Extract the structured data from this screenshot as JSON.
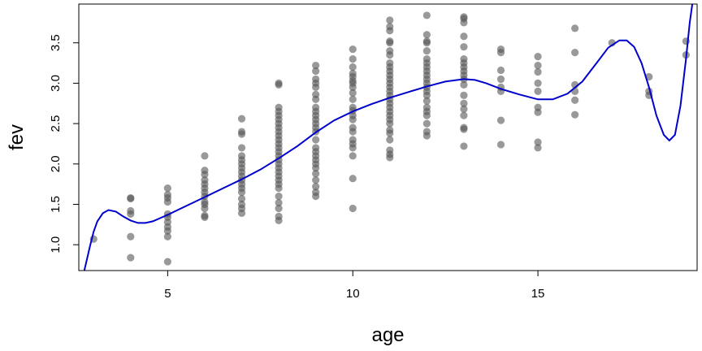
{
  "chart_data": {
    "type": "scatter",
    "title": "",
    "xlabel": "age",
    "ylabel": "fev",
    "xlim": [
      2.6,
      19.3
    ],
    "ylim": [
      0.68,
      3.98
    ],
    "xticks": [
      5,
      10,
      15
    ],
    "yticks": [
      1.0,
      1.5,
      2.0,
      2.5,
      3.0,
      3.5
    ],
    "xtick_labels": [
      "5",
      "10",
      "15"
    ],
    "ytick_labels": [
      "1.0",
      "1.5",
      "2.0",
      "2.5",
      "3.0",
      "3.5"
    ],
    "grid": false,
    "legend": "none",
    "point_color": "#555555",
    "line_color": "#0000cc",
    "series": [
      {
        "kind": "points",
        "points": [
          [
            3,
            1.07
          ],
          [
            4,
            0.84
          ],
          [
            4,
            1.1
          ],
          [
            4,
            1.38
          ],
          [
            4,
            1.42
          ],
          [
            4,
            1.57
          ],
          [
            4,
            1.58
          ],
          [
            5,
            0.79
          ],
          [
            5,
            1.1
          ],
          [
            5,
            1.17
          ],
          [
            5,
            1.22
          ],
          [
            5,
            1.28
          ],
          [
            5,
            1.34
          ],
          [
            5,
            1.38
          ],
          [
            5,
            1.53
          ],
          [
            5,
            1.58
          ],
          [
            5,
            1.62
          ],
          [
            5,
            1.7
          ],
          [
            6,
            1.34
          ],
          [
            6,
            1.36
          ],
          [
            6,
            1.45
          ],
          [
            6,
            1.5
          ],
          [
            6,
            1.53
          ],
          [
            6,
            1.6
          ],
          [
            6,
            1.65
          ],
          [
            6,
            1.7
          ],
          [
            6,
            1.75
          ],
          [
            6,
            1.8
          ],
          [
            6,
            1.87
          ],
          [
            6,
            1.92
          ],
          [
            6,
            2.1
          ],
          [
            7,
            1.39
          ],
          [
            7,
            1.45
          ],
          [
            7,
            1.5
          ],
          [
            7,
            1.57
          ],
          [
            7,
            1.65
          ],
          [
            7,
            1.7
          ],
          [
            7,
            1.75
          ],
          [
            7,
            1.8
          ],
          [
            7,
            1.85
          ],
          [
            7,
            1.9
          ],
          [
            7,
            1.95
          ],
          [
            7,
            2.0
          ],
          [
            7,
            2.05
          ],
          [
            7,
            2.1
          ],
          [
            7,
            2.2
          ],
          [
            7,
            2.37
          ],
          [
            7,
            2.4
          ],
          [
            7,
            2.56
          ],
          [
            8,
            1.3
          ],
          [
            8,
            1.35
          ],
          [
            8,
            1.45
          ],
          [
            8,
            1.52
          ],
          [
            8,
            1.6
          ],
          [
            8,
            1.7
          ],
          [
            8,
            1.75
          ],
          [
            8,
            1.8
          ],
          [
            8,
            1.85
          ],
          [
            8,
            1.9
          ],
          [
            8,
            1.95
          ],
          [
            8,
            2.0
          ],
          [
            8,
            2.05
          ],
          [
            8,
            2.1
          ],
          [
            8,
            2.15
          ],
          [
            8,
            2.2
          ],
          [
            8,
            2.25
          ],
          [
            8,
            2.3
          ],
          [
            8,
            2.35
          ],
          [
            8,
            2.4
          ],
          [
            8,
            2.45
          ],
          [
            8,
            2.5
          ],
          [
            8,
            2.55
          ],
          [
            8,
            2.6
          ],
          [
            8,
            2.65
          ],
          [
            8,
            2.7
          ],
          [
            8,
            2.98
          ],
          [
            8,
            3.0
          ],
          [
            9,
            1.6
          ],
          [
            9,
            1.65
          ],
          [
            9,
            1.72
          ],
          [
            9,
            1.8
          ],
          [
            9,
            1.88
          ],
          [
            9,
            1.95
          ],
          [
            9,
            2.0
          ],
          [
            9,
            2.05
          ],
          [
            9,
            2.1
          ],
          [
            9,
            2.15
          ],
          [
            9,
            2.2
          ],
          [
            9,
            2.3
          ],
          [
            9,
            2.4
          ],
          [
            9,
            2.45
          ],
          [
            9,
            2.5
          ],
          [
            9,
            2.55
          ],
          [
            9,
            2.6
          ],
          [
            9,
            2.65
          ],
          [
            9,
            2.7
          ],
          [
            9,
            2.8
          ],
          [
            9,
            2.86
          ],
          [
            9,
            2.95
          ],
          [
            9,
            3.0
          ],
          [
            9,
            3.05
          ],
          [
            9,
            3.15
          ],
          [
            9,
            3.22
          ],
          [
            10,
            1.45
          ],
          [
            10,
            1.82
          ],
          [
            10,
            2.1
          ],
          [
            10,
            2.2
          ],
          [
            10,
            2.25
          ],
          [
            10,
            2.3
          ],
          [
            10,
            2.4
          ],
          [
            10,
            2.45
          ],
          [
            10,
            2.55
          ],
          [
            10,
            2.6
          ],
          [
            10,
            2.66
          ],
          [
            10,
            2.7
          ],
          [
            10,
            2.8
          ],
          [
            10,
            2.88
          ],
          [
            10,
            2.95
          ],
          [
            10,
            3.0
          ],
          [
            10,
            3.03
          ],
          [
            10,
            3.08
          ],
          [
            10,
            3.12
          ],
          [
            10,
            3.2
          ],
          [
            10,
            3.3
          ],
          [
            10,
            3.42
          ],
          [
            11,
            2.08
          ],
          [
            11,
            2.12
          ],
          [
            11,
            2.17
          ],
          [
            11,
            2.3
          ],
          [
            11,
            2.38
          ],
          [
            11,
            2.42
          ],
          [
            11,
            2.5
          ],
          [
            11,
            2.55
          ],
          [
            11,
            2.6
          ],
          [
            11,
            2.65
          ],
          [
            11,
            2.7
          ],
          [
            11,
            2.75
          ],
          [
            11,
            2.8
          ],
          [
            11,
            2.85
          ],
          [
            11,
            2.9
          ],
          [
            11,
            2.95
          ],
          [
            11,
            3.0
          ],
          [
            11,
            3.05
          ],
          [
            11,
            3.1
          ],
          [
            11,
            3.15
          ],
          [
            11,
            3.2
          ],
          [
            11,
            3.25
          ],
          [
            11,
            3.35
          ],
          [
            11,
            3.4
          ],
          [
            11,
            3.5
          ],
          [
            11,
            3.52
          ],
          [
            11,
            3.65
          ],
          [
            11,
            3.7
          ],
          [
            11,
            3.78
          ],
          [
            12,
            2.35
          ],
          [
            12,
            2.4
          ],
          [
            12,
            2.5
          ],
          [
            12,
            2.6
          ],
          [
            12,
            2.65
          ],
          [
            12,
            2.7
          ],
          [
            12,
            2.78
          ],
          [
            12,
            2.85
          ],
          [
            12,
            2.9
          ],
          [
            12,
            2.95
          ],
          [
            12,
            3.0
          ],
          [
            12,
            3.05
          ],
          [
            12,
            3.1
          ],
          [
            12,
            3.15
          ],
          [
            12,
            3.2
          ],
          [
            12,
            3.25
          ],
          [
            12,
            3.3
          ],
          [
            12,
            3.4
          ],
          [
            12,
            3.5
          ],
          [
            12,
            3.52
          ],
          [
            12,
            3.6
          ],
          [
            12,
            3.84
          ],
          [
            13,
            2.22
          ],
          [
            13,
            2.43
          ],
          [
            13,
            2.45
          ],
          [
            13,
            2.6
          ],
          [
            13,
            2.68
          ],
          [
            13,
            2.75
          ],
          [
            13,
            2.85
          ],
          [
            13,
            2.98
          ],
          [
            13,
            3.05
          ],
          [
            13,
            3.1
          ],
          [
            13,
            3.15
          ],
          [
            13,
            3.2
          ],
          [
            13,
            3.25
          ],
          [
            13,
            3.3
          ],
          [
            13,
            3.45
          ],
          [
            13,
            3.58
          ],
          [
            13,
            3.75
          ],
          [
            13,
            3.8
          ],
          [
            13,
            3.82
          ],
          [
            14,
            2.24
          ],
          [
            14,
            2.54
          ],
          [
            14,
            2.9
          ],
          [
            14,
            2.95
          ],
          [
            14,
            3.05
          ],
          [
            14,
            3.16
          ],
          [
            14,
            3.38
          ],
          [
            14,
            3.42
          ],
          [
            15,
            2.2
          ],
          [
            15,
            2.27
          ],
          [
            15,
            2.64
          ],
          [
            15,
            2.7
          ],
          [
            15,
            2.9
          ],
          [
            15,
            3.0
          ],
          [
            15,
            3.14
          ],
          [
            15,
            3.22
          ],
          [
            15,
            3.33
          ],
          [
            16,
            2.61
          ],
          [
            16,
            2.79
          ],
          [
            16,
            2.9
          ],
          [
            16,
            2.98
          ],
          [
            16,
            3.38
          ],
          [
            16,
            3.68
          ],
          [
            17,
            3.5
          ],
          [
            18,
            2.85
          ],
          [
            18,
            2.9
          ],
          [
            18,
            3.08
          ],
          [
            19,
            3.35
          ],
          [
            19,
            3.52
          ]
        ]
      },
      {
        "kind": "fitted-curve",
        "points": [
          [
            2.75,
            0.68
          ],
          [
            2.9,
            0.98
          ],
          [
            3.0,
            1.16
          ],
          [
            3.1,
            1.29
          ],
          [
            3.25,
            1.39
          ],
          [
            3.4,
            1.43
          ],
          [
            3.6,
            1.41
          ],
          [
            3.8,
            1.35
          ],
          [
            4.0,
            1.3
          ],
          [
            4.2,
            1.27
          ],
          [
            4.4,
            1.27
          ],
          [
            4.6,
            1.29
          ],
          [
            5.0,
            1.37
          ],
          [
            5.5,
            1.48
          ],
          [
            6.0,
            1.59
          ],
          [
            6.5,
            1.7
          ],
          [
            7.0,
            1.81
          ],
          [
            7.5,
            1.93
          ],
          [
            8.0,
            2.07
          ],
          [
            8.5,
            2.22
          ],
          [
            9.0,
            2.39
          ],
          [
            9.5,
            2.54
          ],
          [
            10.0,
            2.65
          ],
          [
            10.5,
            2.74
          ],
          [
            11.0,
            2.82
          ],
          [
            11.5,
            2.89
          ],
          [
            12.0,
            2.96
          ],
          [
            12.5,
            3.02
          ],
          [
            13.0,
            3.05
          ],
          [
            13.3,
            3.04
          ],
          [
            13.6,
            3.0
          ],
          [
            14.0,
            2.93
          ],
          [
            14.5,
            2.86
          ],
          [
            15.0,
            2.8
          ],
          [
            15.4,
            2.8
          ],
          [
            15.8,
            2.87
          ],
          [
            16.2,
            3.02
          ],
          [
            16.6,
            3.26
          ],
          [
            16.9,
            3.44
          ],
          [
            17.2,
            3.53
          ],
          [
            17.4,
            3.53
          ],
          [
            17.6,
            3.45
          ],
          [
            17.8,
            3.25
          ],
          [
            18.0,
            2.95
          ],
          [
            18.2,
            2.6
          ],
          [
            18.4,
            2.36
          ],
          [
            18.55,
            2.29
          ],
          [
            18.7,
            2.36
          ],
          [
            18.85,
            2.72
          ],
          [
            19.0,
            3.3
          ],
          [
            19.1,
            3.75
          ],
          [
            19.17,
            3.98
          ]
        ]
      }
    ]
  }
}
